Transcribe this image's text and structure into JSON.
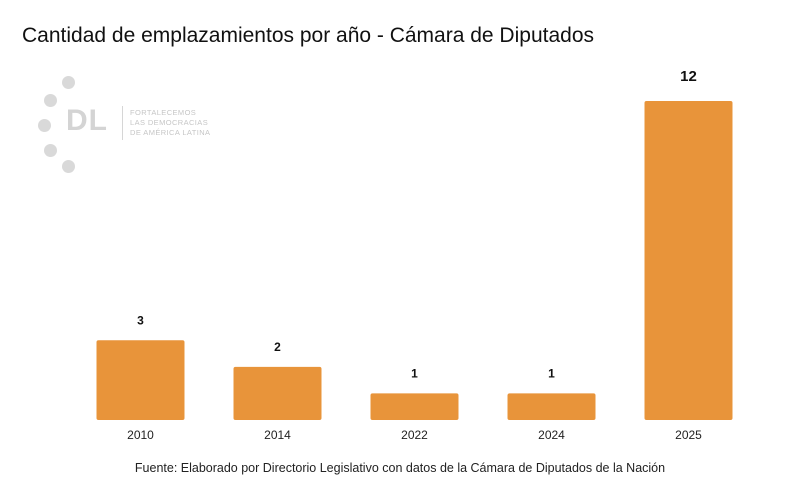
{
  "header": {
    "title": "Cantidad de emplazamientos por año - Cámara de Diputados"
  },
  "logo": {
    "mark": "DL",
    "lines": [
      "FORTALECEMOS",
      "LAS DEMOCRACIAS",
      "DE AMÉRICA LATINA"
    ]
  },
  "colors": {
    "bar": "#E8943A",
    "text": "#111111"
  },
  "chart_data": {
    "type": "bar",
    "title": "Cantidad de emplazamientos por año - Cámara de Diputados",
    "xlabel": "",
    "ylabel": "",
    "categories": [
      "2010",
      "2014",
      "2022",
      "2024",
      "2025"
    ],
    "values": [
      3,
      2,
      1,
      1,
      12
    ],
    "data_labels": [
      "3",
      "2",
      "1",
      "1",
      "12"
    ],
    "ylim": [
      0,
      12
    ],
    "grid": false,
    "legend": "none"
  },
  "footer": {
    "source": "Fuente: Elaborado por Directorio Legislativo con datos de la Cámara de Diputados de la Nación"
  }
}
